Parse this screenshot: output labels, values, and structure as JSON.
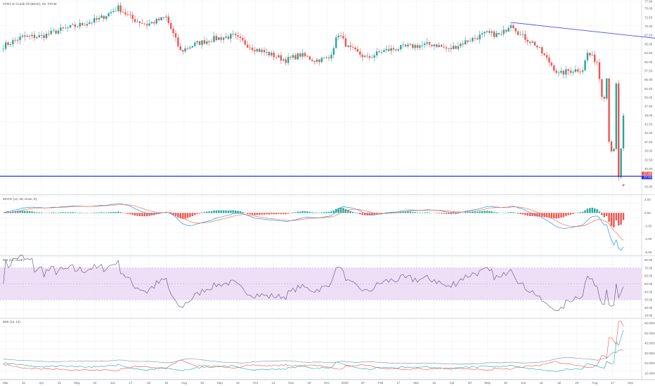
{
  "chart_data": {
    "type": "candlestick",
    "title": "CFDs on Crude Oil (Brent), 1D, FXCM",
    "colors": {
      "up": "#26a69a",
      "down": "#ef5350",
      "trendline": "#4c4cff",
      "support": "#1d2bff",
      "macd": "#2196f3",
      "signal": "#ff7043",
      "rsi": "#7e57c2",
      "rsi_band": "#ead7f5",
      "adx": "#ef5350",
      "di_plus": "#26a69a",
      "di_minus": "#78909c"
    },
    "x_labels": [
      "Mar",
      "15",
      "Apr",
      "15",
      "May",
      "22",
      "Jun",
      "17",
      "Jul",
      "15",
      "Aug",
      "19",
      "Sep",
      "16",
      "Oct",
      "14",
      "Nov",
      "18",
      "Dec",
      "2020",
      "20",
      "Feb",
      "17",
      "Mar",
      "16",
      "Apr",
      "20",
      "May",
      "18",
      "Jun",
      "15",
      "Jul",
      "20",
      "Aug",
      "17",
      "Sep"
    ],
    "price": {
      "ylim": [
        23,
        77
      ],
      "ticks": [
        "77.00",
        "75.00",
        "72.50",
        "70.00",
        "67.50",
        "65.00",
        "62.50",
        "60.00",
        "57.50",
        "55.00",
        "52.50",
        "50.00",
        "47.50",
        "45.00",
        "42.50",
        "40.00",
        "37.50",
        "35.00",
        "32.50",
        "30.00",
        "27.50",
        "25.00"
      ],
      "last_price_label": "27.99",
      "last_price_label_2": "27.95",
      "support_level": 27.9,
      "trendline": {
        "from": [
          106,
          71.1
        ],
        "to": [
          160,
          27.9
        ]
      },
      "anchors": [
        [
          0,
          64.5
        ],
        [
          4,
          67
        ],
        [
          8,
          67.2
        ],
        [
          12,
          69
        ],
        [
          16,
          70.4
        ],
        [
          20,
          72
        ],
        [
          24,
          75.2
        ],
        [
          27,
          72
        ],
        [
          30,
          70.5
        ],
        [
          34,
          72.5
        ],
        [
          37,
          63
        ],
        [
          40,
          65
        ],
        [
          44,
          66.5
        ],
        [
          48,
          67.3
        ],
        [
          52,
          64
        ],
        [
          56,
          62
        ],
        [
          59,
          60.5
        ],
        [
          62,
          62
        ],
        [
          65,
          60.5
        ],
        [
          68,
          61
        ],
        [
          70,
          68
        ],
        [
          72,
          64
        ],
        [
          76,
          61
        ],
        [
          79,
          63
        ],
        [
          83,
          64
        ],
        [
          86,
          64.5
        ],
        [
          90,
          65
        ],
        [
          93,
          63.5
        ],
        [
          97,
          66
        ],
        [
          101,
          68
        ],
        [
          104,
          67.5
        ],
        [
          106,
          71
        ],
        [
          108,
          67.5
        ],
        [
          111,
          65
        ],
        [
          114,
          60
        ],
        [
          116,
          56.5
        ],
        [
          118,
          57.5
        ],
        [
          121,
          58
        ],
        [
          122,
          62.5
        ],
        [
          124,
          60
        ],
        [
          126,
          55.5
        ],
        [
          128,
          53.5
        ],
        [
          130,
          53
        ],
        [
          132,
          46.5
        ],
        [
          125.5,
          50.5
        ],
        [
          125.2,
          52.6
        ],
        [
          125,
          51
        ],
        [
          125.9,
          46
        ],
        [
          126.2,
          41
        ],
        [
          126.8,
          35.5
        ],
        [
          127.6,
          34.8
        ],
        [
          127.8,
          30
        ],
        [
          128.5,
          27.2
        ]
      ]
    },
    "macd": {
      "label": "MACD (12, 26, close, 9)",
      "ticks": [
        "2.00",
        "0.00",
        "-2.00",
        "-4.00",
        "-6.00"
      ],
      "ylim": [
        -6.4,
        2.6
      ]
    },
    "rsi": {
      "label": "RSI (14, close)",
      "ticks": [
        "80.00",
        "70.00",
        "60.00",
        "50.00",
        "40.00",
        "30.00",
        "20.00",
        "10.00"
      ],
      "band": [
        30,
        70
      ],
      "ylim": [
        8,
        84
      ]
    },
    "dmi": {
      "label": "DMI (14, 14)",
      "ticks": [
        "60.0000",
        "50.0000",
        "40.0000",
        "30.0000",
        "20.0000",
        "10.0000"
      ],
      "ylim": [
        5,
        64
      ]
    }
  }
}
